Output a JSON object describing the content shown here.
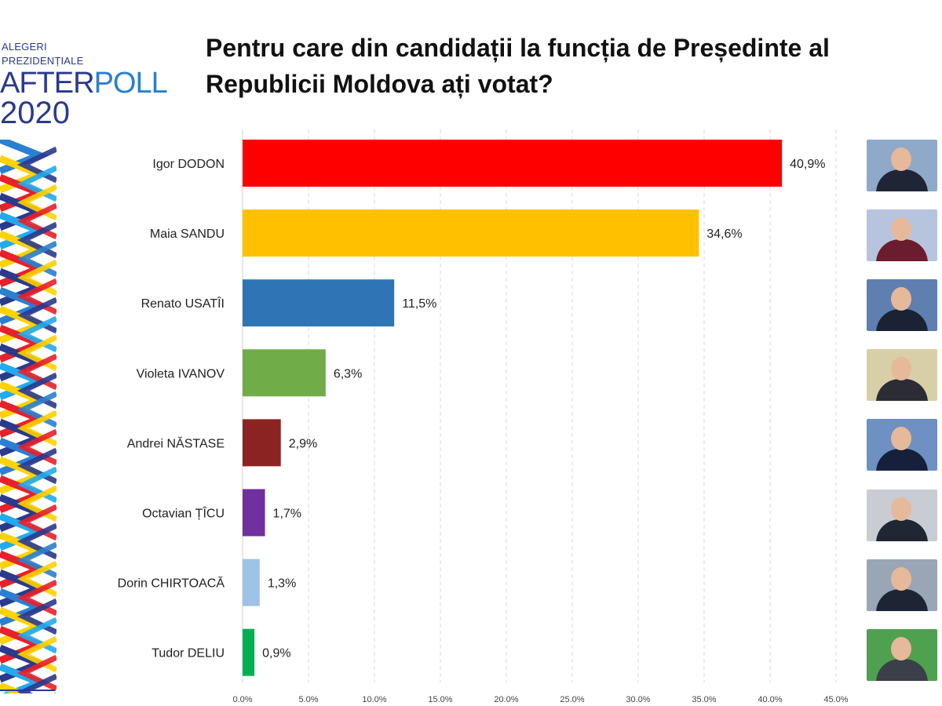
{
  "logo": {
    "line1": "ALEGERI",
    "line2": "PREZIDENȚIALE",
    "line3a": "AFTER",
    "line3b": "POLL",
    "line4": "2020"
  },
  "title": "Pentru care din candidații la funcția de Președinte al Republicii Moldova ați votat?",
  "chart_data": {
    "type": "bar",
    "orientation": "horizontal",
    "title": "Pentru care din candidații la funcția de Președinte al Republicii Moldova ați votat?",
    "categories": [
      "Igor DODON",
      "Maia SANDU",
      "Renato USATÎI",
      "Violeta IVANOV",
      "Andrei NĂSTASE",
      "Octavian ȚÎCU",
      "Dorin CHIRTOACĂ",
      "Tudor DELIU"
    ],
    "values": [
      40.9,
      34.6,
      11.5,
      6.3,
      2.9,
      1.7,
      1.3,
      0.9
    ],
    "value_labels": [
      "40,9%",
      "34,6%",
      "11,5%",
      "6,3%",
      "2,9%",
      "1,7%",
      "1,3%",
      "0,9%"
    ],
    "colors": [
      "#ff0000",
      "#ffc000",
      "#2e75b6",
      "#70ad47",
      "#8b2323",
      "#7030a0",
      "#9dc3e6",
      "#00b050"
    ],
    "xlim": [
      0,
      45
    ],
    "ticks": [
      0,
      5,
      10,
      15,
      20,
      25,
      30,
      35,
      40,
      45
    ],
    "tick_labels": [
      "0.0%",
      "5.0%",
      "10.0%",
      "15.0%",
      "20.0%",
      "25.0%",
      "30.0%",
      "35.0%",
      "40.0%",
      "45.0%"
    ],
    "grid": "vertical-dashed",
    "xlabel": "",
    "ylabel": ""
  },
  "photos": [
    {
      "bg": "#8fa9c8",
      "suit": "#1f2536"
    },
    {
      "bg": "#b7c4de",
      "suit": "#6b1c2e"
    },
    {
      "bg": "#5f7fb0",
      "suit": "#1a2233"
    },
    {
      "bg": "#d8cfa8",
      "suit": "#2c2c34"
    },
    {
      "bg": "#6f90c2",
      "suit": "#17203a"
    },
    {
      "bg": "#c9ccd2",
      "suit": "#202632"
    },
    {
      "bg": "#9aa6b6",
      "suit": "#1d2535"
    },
    {
      "bg": "#4fa04f",
      "suit": "#3a3f4a"
    }
  ]
}
